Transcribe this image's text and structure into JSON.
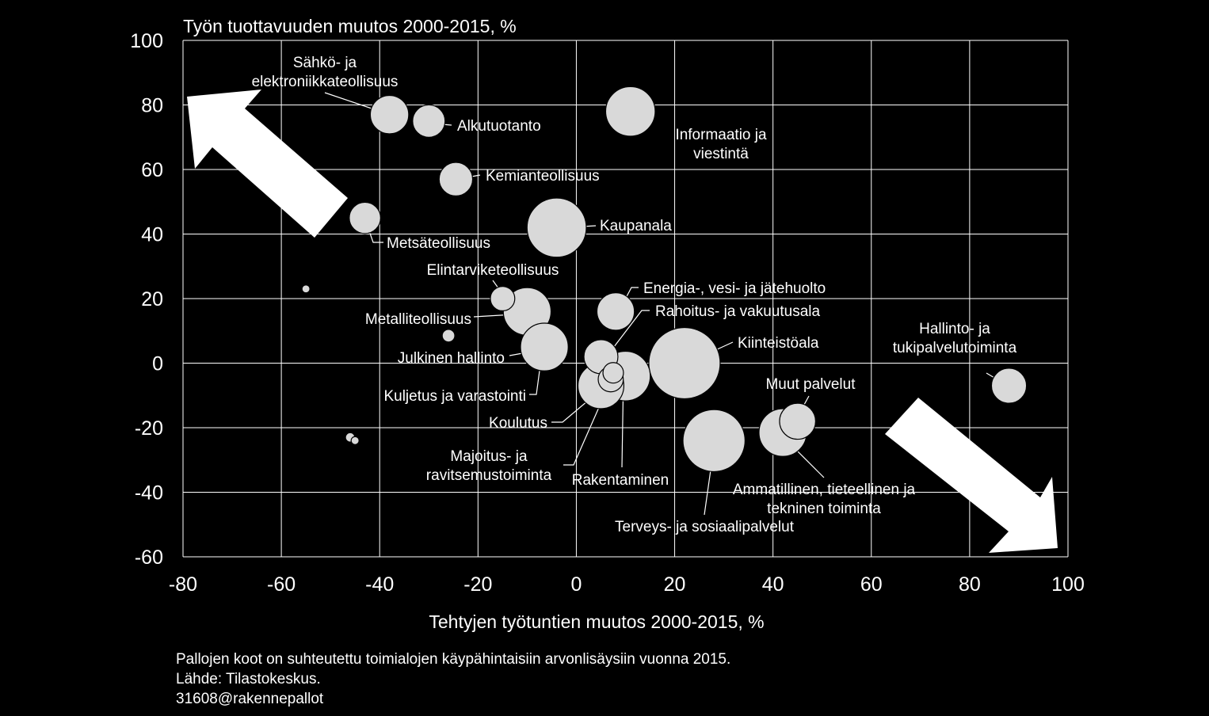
{
  "chart_data": {
    "type": "scatter",
    "title": "",
    "ylabel": "Työn tuottavuuden muutos 2000-2015, %",
    "xlabel": "Tehtyjen työtuntien muutos 2000-2015, %",
    "xlim": [
      -80,
      100
    ],
    "ylim": [
      -60,
      100
    ],
    "xticks": [
      "-80",
      "-60",
      "-40",
      "-20",
      "0",
      "20",
      "40",
      "60",
      "80",
      "100"
    ],
    "yticks": [
      "100",
      "80",
      "60",
      "40",
      "20",
      "0",
      "-20",
      "-40",
      "-60"
    ],
    "grid": true,
    "bubble_color": "#d9d9d9",
    "points": [
      {
        "label": "Sähkö- ja elektroniikkateollisuus",
        "x": -38,
        "y": 77,
        "size": 4.2
      },
      {
        "label": "Alkutuotanto",
        "x": -30,
        "y": 75,
        "size": 3.0
      },
      {
        "label": "Informaatio ja viestintä",
        "x": 11,
        "y": 78,
        "size": 7.0
      },
      {
        "label": "Kemianteollisuus",
        "x": -24.5,
        "y": 57,
        "size": 3.2
      },
      {
        "label": "Metsäteollisuus",
        "x": -43,
        "y": 45,
        "size": 2.8
      },
      {
        "label": "Kaupanala",
        "x": -4,
        "y": 42,
        "size": 10.0
      },
      {
        "label": "Elintarviketeollisuus",
        "x": -15,
        "y": 20,
        "size": 1.7
      },
      {
        "label": "Energia-, vesi- ja jätehuolto",
        "x": 8,
        "y": 16,
        "size": 4.0
      },
      {
        "label": "Metalliteollisuus",
        "x": -10,
        "y": 16,
        "size": 6.5
      },
      {
        "label": "Julkinen hallinto",
        "x": -6.5,
        "y": 5,
        "size": 6.5
      },
      {
        "label": "Rahoitus- ja vakuutusala",
        "x": 5,
        "y": 2,
        "size": 3.3
      },
      {
        "label": "Kiinteistöala",
        "x": 22,
        "y": 0,
        "size": 14.5
      },
      {
        "label": "Kuljetus ja varastointi",
        "x": 10,
        "y": -4,
        "size": 7.0
      },
      {
        "label": "Koulutus",
        "x": 5,
        "y": -7,
        "size": 6.0
      },
      {
        "label": "Majoitus- ja ravitsemustoiminta",
        "x": 7,
        "y": -5,
        "size": 1.8
      },
      {
        "label": "Rakentaminen",
        "x": 7.5,
        "y": -3,
        "size": 1.2
      },
      {
        "label": "Hallinto- ja tukipalvelutoiminta",
        "x": 88,
        "y": -7,
        "size": 3.5
      },
      {
        "label": "Muut palvelut",
        "x": 45,
        "y": -18,
        "size": 3.7
      },
      {
        "label": "Ammatillinen, tieteellinen ja tekninen toiminta",
        "x": 42,
        "y": -21.5,
        "size": 6.5
      },
      {
        "label": "Terveys- ja sosiaalipalvelut",
        "x": 28,
        "y": -24,
        "size": 11.0
      },
      {
        "label": "",
        "x": -55,
        "y": 23,
        "size": 0.15
      },
      {
        "label": "",
        "x": -26,
        "y": 8.5,
        "size": 0.45
      },
      {
        "label": "",
        "x": -46,
        "y": -23,
        "size": 0.25
      },
      {
        "label": "",
        "x": -45,
        "y": -24,
        "size": 0.18
      }
    ]
  },
  "footnotes": {
    "line1": "Pallojen koot on suhteutettu toimialojen käypähintaisiin arvonlisäysiin vuonna 2015.",
    "line2": "Lähde: Tilastokeskus.",
    "line3": "31608@rakennepallot"
  }
}
